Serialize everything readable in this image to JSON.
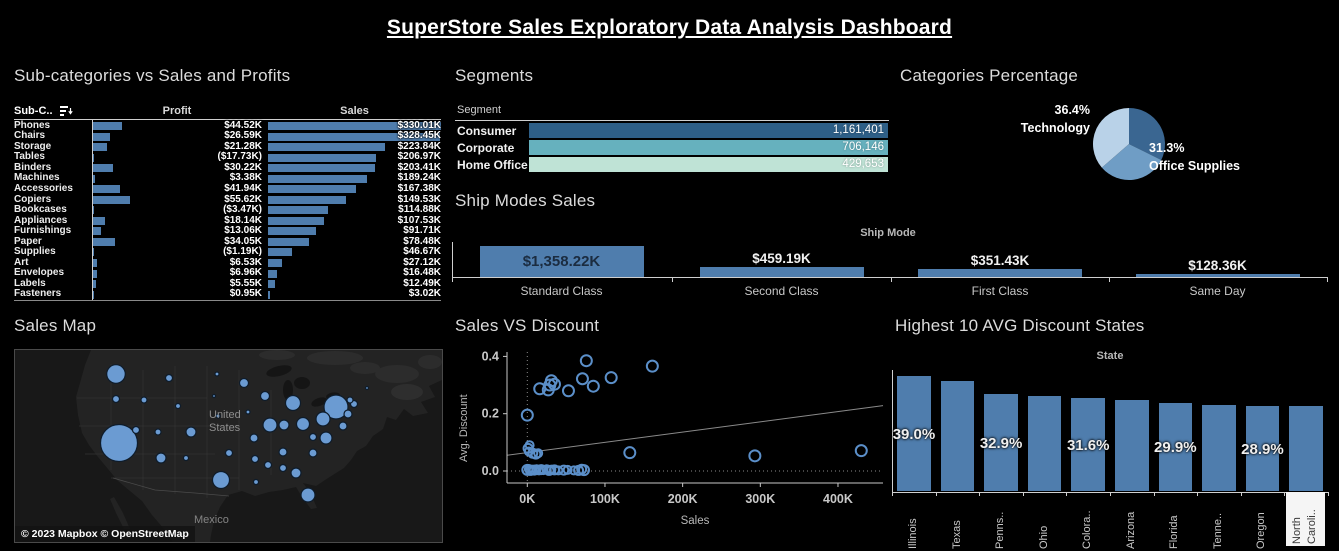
{
  "title": "SuperStore Sales Exploratory Data Analysis Dashboard",
  "colors": {
    "background": "#000000",
    "bar_blue": "#4f7dad",
    "map_bubble": "#6b9bd2",
    "scatter_ring": "#5b8fc9",
    "segment_consumer": "#2e5f87",
    "segment_corporate": "#66b1be",
    "segment_home_office": "#bfe3d6",
    "pie_dark": "#3a6691",
    "pie_medium": "#6f9dc5",
    "pie_light": "#b9d2e8",
    "axis_text": "#c8c8c8",
    "title_text": "#dcdcdc"
  },
  "chart_data": [
    {
      "id": "subcategories",
      "type": "bar",
      "title": "Sub-categories vs Sales and Profits",
      "columns": [
        "Sub-C..",
        "Profit",
        "Sales"
      ],
      "categories": [
        "Phones",
        "Chairs",
        "Storage",
        "Tables",
        "Binders",
        "Machines",
        "Accessories",
        "Copiers",
        "Bookcases",
        "Appliances",
        "Furnishings",
        "Paper",
        "Supplies",
        "Art",
        "Envelopes",
        "Labels",
        "Fasteners"
      ],
      "series": [
        {
          "name": "Profit",
          "values": [
            44.52,
            26.59,
            21.28,
            -17.73,
            30.22,
            3.38,
            41.94,
            55.62,
            -3.47,
            18.14,
            13.06,
            34.05,
            -1.19,
            6.53,
            6.96,
            5.55,
            0.95
          ],
          "labels": [
            "$44.52K",
            "$26.59K",
            "$21.28K",
            "($17.73K)",
            "$30.22K",
            "$3.38K",
            "$41.94K",
            "$55.62K",
            "($3.47K)",
            "$18.14K",
            "$13.06K",
            "$34.05K",
            "($1.19K)",
            "$6.53K",
            "$6.96K",
            "$5.55K",
            "$0.95K"
          ]
        },
        {
          "name": "Sales",
          "values": [
            330.01,
            328.45,
            223.84,
            206.97,
            203.41,
            189.24,
            167.38,
            149.53,
            114.88,
            107.53,
            91.71,
            78.48,
            46.67,
            27.12,
            16.48,
            12.49,
            3.02
          ],
          "labels": [
            "$330.01K",
            "$328.45K",
            "$223.84K",
            "$206.97K",
            "$203.41K",
            "$189.24K",
            "$167.38K",
            "$149.53K",
            "$114.88K",
            "$107.53K",
            "$91.71K",
            "$78.48K",
            "$46.67K",
            "$27.12K",
            "$16.48K",
            "$12.49K",
            "$3.02K"
          ]
        }
      ],
      "units": "K USD"
    },
    {
      "id": "segments",
      "type": "bar",
      "title": "Segments",
      "xlabel": "Segment",
      "categories": [
        "Consumer",
        "Corporate",
        "Home Office"
      ],
      "values": [
        1161401,
        706146,
        429653
      ],
      "labels": [
        "1,161,401",
        "706,146",
        "429,653"
      ],
      "bar_colors": [
        "#2e5f87",
        "#66b1be",
        "#bfe3d6"
      ]
    },
    {
      "id": "categories_percentage",
      "type": "pie",
      "title": "Categories Percentage",
      "slices": [
        {
          "label": "",
          "pct": 32.3,
          "color": "#3a6691"
        },
        {
          "label": "Office Supplies",
          "pct": 31.3,
          "color": "#6f9dc5"
        },
        {
          "label": "Technology",
          "pct": 36.4,
          "color": "#b9d2e8"
        }
      ],
      "callouts": [
        {
          "pct": "36.4%",
          "name": "Technology",
          "side": "left"
        },
        {
          "pct": "31.3%",
          "name": "Office Supplies",
          "side": "right"
        }
      ]
    },
    {
      "id": "ship_modes_sales",
      "type": "bar",
      "title": "Ship Modes Sales",
      "xlabel": "Ship Mode",
      "categories": [
        "Standard Class",
        "Second Class",
        "First Class",
        "Same Day"
      ],
      "values": [
        1358.22,
        459.19,
        351.43,
        128.36
      ],
      "labels": [
        "$1,358.22K",
        "$459.19K",
        "$351.43K",
        "$128.36K"
      ],
      "label_inside": [
        true,
        false,
        false,
        false
      ]
    },
    {
      "id": "sales_map",
      "type": "map-bubble",
      "title": "Sales Map",
      "region_labels": {
        "country": "United\nStates",
        "neighbor": "Mexico"
      },
      "attribution": "© 2023 Mapbox  © OpenStreetMap",
      "bubbles": [
        [
          101,
          24,
          9.3
        ],
        [
          154,
          28,
          3.5
        ],
        [
          202,
          24,
          2
        ],
        [
          229,
          33,
          4.5
        ],
        [
          250,
          46,
          4.5
        ],
        [
          101,
          49,
          3.5
        ],
        [
          129,
          50,
          3
        ],
        [
          163,
          56,
          2.5
        ],
        [
          199,
          46,
          1.5
        ],
        [
          203,
          66,
          2
        ],
        [
          233,
          62,
          2
        ],
        [
          278,
          53,
          7.5
        ],
        [
          321,
          57,
          12
        ],
        [
          308,
          69,
          7
        ],
        [
          333,
          64,
          4
        ],
        [
          339,
          54,
          3.5
        ],
        [
          335,
          50,
          3
        ],
        [
          328,
          76,
          4
        ],
        [
          255,
          75,
          7
        ],
        [
          269,
          75,
          5
        ],
        [
          288,
          74,
          6.5
        ],
        [
          298,
          87,
          3.5
        ],
        [
          311,
          88,
          6
        ],
        [
          176,
          82,
          5
        ],
        [
          104,
          93,
          18.5
        ],
        [
          121,
          80,
          3.5
        ],
        [
          143,
          82,
          3
        ],
        [
          146,
          108,
          5
        ],
        [
          171,
          108,
          2.5
        ],
        [
          214,
          103,
          3.5
        ],
        [
          239,
          88,
          4
        ],
        [
          240,
          109,
          3.5
        ],
        [
          253,
          115,
          3.5
        ],
        [
          268,
          102,
          4
        ],
        [
          268,
          118,
          3.5
        ],
        [
          281,
          123,
          5
        ],
        [
          298,
          103,
          4
        ],
        [
          206,
          130,
          8.5
        ],
        [
          241,
          132,
          2.5
        ],
        [
          293,
          145,
          7
        ],
        [
          352,
          38,
          1.5
        ]
      ]
    },
    {
      "id": "sales_vs_discount",
      "type": "scatter",
      "title": "Sales VS Discount",
      "xlabel": "Sales",
      "ylabel": "Avg. Discount",
      "x_ticks": [
        "0K",
        "100K",
        "200K",
        "300K",
        "400K"
      ],
      "y_ticks": [
        "0.0",
        "0.2",
        "0.4"
      ],
      "xlim_k": [
        -26,
        458
      ],
      "ylim": [
        0,
        0.46
      ],
      "points": [
        [
          0,
          0.195,
          5.5
        ],
        [
          16,
          0.287,
          5.5
        ],
        [
          27,
          0.283,
          5.5
        ],
        [
          29,
          0.3,
          5.5
        ],
        [
          31,
          0.315,
          5.5
        ],
        [
          35,
          0.303,
          5.5
        ],
        [
          53,
          0.28,
          5.5
        ],
        [
          71,
          0.322,
          5.5
        ],
        [
          76,
          0.385,
          5.5
        ],
        [
          85,
          0.296,
          5.5
        ],
        [
          108,
          0.326,
          5.5
        ],
        [
          161,
          0.366,
          5.5
        ],
        [
          132,
          0.064,
          5.5
        ],
        [
          293,
          0.053,
          5.5
        ],
        [
          430,
          0.071,
          5.5
        ],
        [
          1,
          0.079,
          4.5
        ],
        [
          3,
          0.09,
          4
        ],
        [
          7,
          0.062,
          4.5
        ],
        [
          11,
          0.059,
          4.5
        ],
        [
          14,
          0.062,
          4
        ],
        [
          2,
          0.068,
          4
        ],
        [
          0,
          0.004,
          5
        ],
        [
          2,
          0.007,
          4
        ],
        [
          4,
          0.002,
          4.5
        ],
        [
          6,
          0.005,
          4
        ],
        [
          9,
          0.003,
          4.5
        ],
        [
          12,
          0.006,
          4
        ],
        [
          15,
          0.002,
          4
        ],
        [
          18,
          0.005,
          4.5
        ],
        [
          21,
          0.003,
          4
        ],
        [
          25,
          0.006,
          4
        ],
        [
          28,
          0.002,
          4.5
        ],
        [
          31,
          0.005,
          4
        ],
        [
          35,
          0.004,
          4.5
        ],
        [
          40,
          0.002,
          4
        ],
        [
          47,
          0.003,
          4.5
        ],
        [
          52,
          0.004,
          4
        ],
        [
          60,
          0.002,
          4
        ],
        [
          66,
          0.002,
          4.5
        ],
        [
          70,
          0.006,
          4.5
        ],
        [
          73,
          0.003,
          5
        ]
      ],
      "trendline": {
        "x1_k": -26,
        "y1": 0.055,
        "x2_k": 458,
        "y2": 0.228
      }
    },
    {
      "id": "highest_avg_discount_states",
      "type": "bar",
      "title": "Highest 10 AVG Discount States",
      "xlabel": "State",
      "categories": [
        "Illinois",
        "Texas",
        "Penns..",
        "Ohio",
        "Colora..",
        "Arizona",
        "Florida",
        "Tenne..",
        "Oregon",
        "North Caroli.."
      ],
      "values": [
        39.0,
        37.1,
        32.9,
        32.1,
        31.6,
        30.6,
        29.9,
        29.2,
        28.9,
        28.6
      ],
      "labels": [
        "39.0%",
        null,
        "32.9%",
        null,
        "31.6%",
        null,
        "29.9%",
        null,
        "28.9%",
        null
      ],
      "highlighted_category": "North Caroli..",
      "highlight_lines": [
        "North",
        "Caroli.."
      ]
    }
  ]
}
